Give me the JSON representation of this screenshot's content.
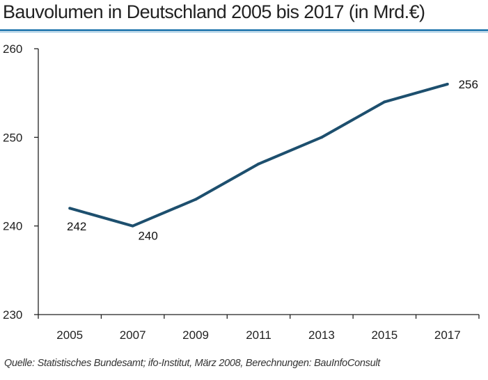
{
  "chart_data": {
    "type": "line",
    "title": "Bauvolumen in Deutschland 2005 bis 2017 (in Mrd.€)",
    "categories": [
      "2005",
      "2007",
      "2009",
      "2011",
      "2013",
      "2015",
      "2017"
    ],
    "values": [
      242,
      240,
      243,
      247,
      250,
      254,
      256
    ],
    "data_labels": {
      "0": "242",
      "1": "240",
      "6": "256"
    },
    "yticks": [
      230,
      240,
      250,
      260
    ],
    "ylim": [
      230,
      260
    ],
    "xlabel": "",
    "ylabel": "",
    "grid": false,
    "line_color": "#1d4f6e",
    "source": "Quelle: Statistisches Bundesamt; ifo-Institut,  März 2008, Berechnungen: BauInfoConsult"
  },
  "colors": {
    "title_rule": "#2f7fb3",
    "axis": "#222222"
  }
}
